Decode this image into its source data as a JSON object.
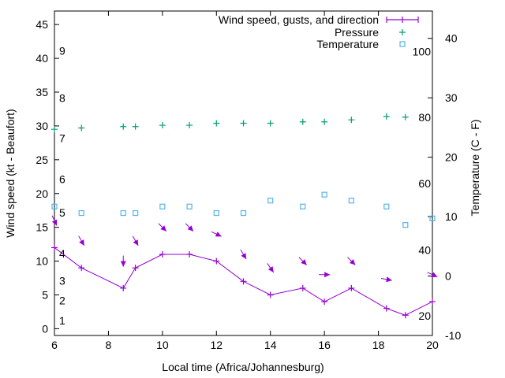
{
  "chart_data": {
    "type": "line",
    "xlabel": "Local time (Africa/Johannesburg)",
    "ylabel": "Wind speed (kt - Beaufort)",
    "y2label": "Temperature (C - F)",
    "xlim": [
      6,
      20
    ],
    "ylim": [
      -1,
      47
    ],
    "y2lim": [
      -10,
      44.6
    ],
    "x_ticks": [
      6,
      8,
      10,
      12,
      14,
      16,
      18,
      20
    ],
    "y_ticks": [
      0,
      5,
      10,
      15,
      20,
      25,
      30,
      35,
      40,
      45
    ],
    "y2_ticks": [
      -10,
      0,
      10,
      20,
      30,
      40
    ],
    "beaufort_labels": [
      {
        "label": "1",
        "kt": 1.2
      },
      {
        "label": "2",
        "kt": 4.2
      },
      {
        "label": "3",
        "kt": 7.1
      },
      {
        "label": "4",
        "kt": 11.1
      },
      {
        "label": "5",
        "kt": 17.2
      },
      {
        "label": "6",
        "kt": 22.1
      },
      {
        "label": "7",
        "kt": 28.2
      },
      {
        "label": "8",
        "kt": 34.1
      },
      {
        "label": "9",
        "kt": 41.1
      }
    ],
    "fahrenheit_labels": [
      {
        "label": "20",
        "c": -6.7
      },
      {
        "label": "40",
        "c": 4.4
      },
      {
        "label": "60",
        "c": 15.6
      },
      {
        "label": "80",
        "c": 26.7
      },
      {
        "label": "100",
        "c": 37.8
      }
    ],
    "legend": {
      "position": "top-right",
      "entries": [
        "Wind speed, gusts, and direction",
        "Pressure",
        "Temperature"
      ]
    },
    "colors": {
      "wind": "#9400d3",
      "pressure": "#009e73",
      "temperature": "#56b4e9"
    },
    "series": [
      {
        "name": "Wind speed, gusts, and direction",
        "x": [
          6,
          7,
          8.55,
          9,
          10,
          11,
          12,
          13,
          14,
          15.2,
          16,
          17,
          18.3,
          19,
          20
        ],
        "values": [
          12,
          9,
          6,
          9,
          11,
          11,
          10,
          7,
          5,
          6,
          4,
          6,
          3,
          2,
          4
        ]
      },
      {
        "name": "Pressure",
        "x": [
          6,
          7,
          8.55,
          9,
          10,
          11,
          12,
          13,
          14,
          15.2,
          16,
          17,
          18.3,
          19
        ],
        "values": [
          29.5,
          29.7,
          29.9,
          29.9,
          30.1,
          30.1,
          30.4,
          30.4,
          30.4,
          30.6,
          30.6,
          30.9,
          31.4,
          31.3
        ]
      },
      {
        "name": "Temperature",
        "axis": "y2",
        "x": [
          6,
          7,
          8.55,
          9,
          10,
          11,
          12,
          13,
          14,
          15.2,
          16,
          17,
          18.3,
          19,
          20
        ],
        "values": [
          11.7,
          10.6,
          10.6,
          10.6,
          11.7,
          11.7,
          10.6,
          10.6,
          12.7,
          11.7,
          13.7,
          12.7,
          11.7,
          8.6,
          9.7
        ]
      },
      {
        "name": "Wind direction arrows",
        "x": [
          6,
          7,
          8.55,
          9,
          10,
          11,
          12,
          13,
          14,
          15.2,
          16,
          17,
          18.3,
          20
        ],
        "gust": [
          16,
          13,
          10,
          13,
          15,
          15,
          14,
          11,
          9,
          10,
          8,
          10,
          7.3,
          8
        ],
        "heading_deg": [
          155,
          150,
          180,
          150,
          135,
          135,
          115,
          150,
          145,
          135,
          90,
          135,
          100,
          115
        ]
      }
    ]
  }
}
